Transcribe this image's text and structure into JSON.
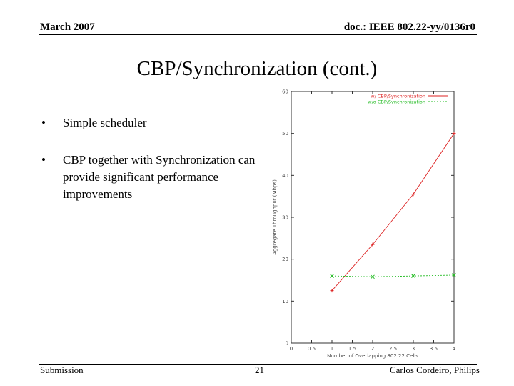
{
  "header": {
    "date": "March 2007",
    "doc_id": "doc.: IEEE 802.22-yy/0136r0"
  },
  "slide": {
    "title": "CBP/Synchronization (cont.)",
    "bullets": [
      {
        "marker": "•",
        "text": "Simple scheduler"
      },
      {
        "marker": "•",
        "text": "CBP together with Synchronization can provide significant performance improvements"
      }
    ]
  },
  "footer": {
    "left": "Submission",
    "page": "21",
    "author": "Carlos Cordeiro, Philips"
  },
  "chart_data": {
    "type": "line",
    "title": "",
    "xlabel": "Number of Overlapping 802.22 Cells",
    "ylabel": "Aggregate Throughput (Mbps)",
    "xlim": [
      0,
      4
    ],
    "ylim": [
      0,
      60
    ],
    "xticks": [
      "0",
      "0.5",
      "1",
      "1.5",
      "2",
      "2.5",
      "3",
      "3.5",
      "4"
    ],
    "yticks": [
      "0",
      "10",
      "20",
      "30",
      "40",
      "50",
      "60"
    ],
    "legend_position": "top-right",
    "series": [
      {
        "name": "w/ CBP/Synchronization",
        "color": "#dd2222",
        "marker": "+",
        "x": [
          1,
          2,
          3,
          4
        ],
        "y": [
          12.5,
          23.5,
          35.5,
          50
        ]
      },
      {
        "name": "w/o CBP/Synchronization",
        "color": "#22bb22",
        "marker": "x",
        "x": [
          1,
          2,
          3,
          4
        ],
        "y": [
          16,
          15.8,
          16,
          16.2
        ]
      }
    ]
  }
}
